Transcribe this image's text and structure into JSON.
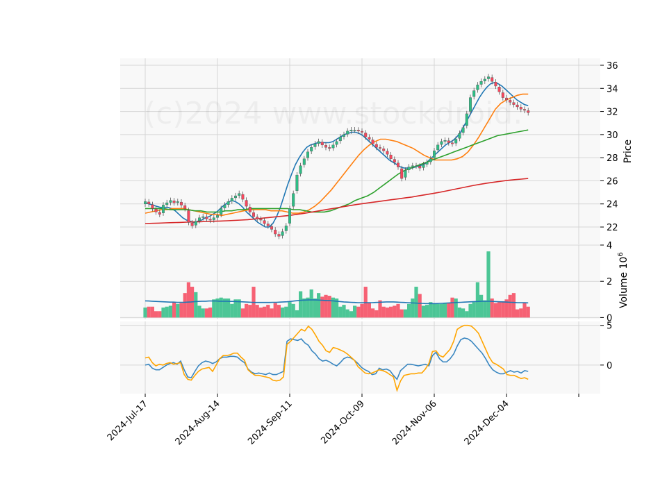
{
  "chart_data": {
    "type": "candlestick",
    "watermark": "(c)2024 www.stockdroid.",
    "colors": {
      "up": "#2ebd85",
      "down": "#f6465d",
      "ma_short": "#1f77b4",
      "ma_mid": "#ff7f0e",
      "ma_long": "#2ca02c",
      "ma_longest": "#d62728",
      "volume_ma": "#1f77b4",
      "osc_fast": "#3a87c1",
      "osc_slow": "#ffa500",
      "panel_bg": "#f8f8f8",
      "grid": "#d6d6d6"
    },
    "x_labels": [
      "2024-Jul-17",
      "2024-Aug-14",
      "2024-Sep-11",
      "2024-Oct-09",
      "2024-Nov-06",
      "2024-Dec-04"
    ],
    "x_label_index": [
      0,
      20,
      40,
      60,
      80,
      100
    ],
    "price_panel": {
      "ylabel": "Price",
      "yticks": [
        22,
        24,
        26,
        28,
        30,
        32,
        34,
        36
      ],
      "ylim": [
        20.5,
        36.6
      ],
      "close": [
        24.2,
        24.0,
        23.6,
        23.3,
        23.1,
        23.9,
        24.1,
        24.3,
        24.1,
        24.2,
        23.9,
        23.6,
        22.4,
        22.1,
        22.5,
        22.8,
        22.9,
        22.7,
        22.6,
        22.8,
        23.0,
        23.6,
        23.9,
        24.2,
        24.5,
        24.7,
        24.9,
        24.4,
        23.8,
        23.3,
        22.9,
        22.7,
        22.6,
        22.3,
        22.1,
        21.8,
        21.4,
        21.2,
        21.6,
        22.1,
        23.6,
        24.9,
        26.5,
        27.3,
        27.9,
        28.5,
        28.9,
        29.2,
        29.4,
        29.1,
        28.9,
        28.8,
        29.1,
        29.4,
        29.8,
        30.0,
        30.3,
        30.4,
        30.4,
        30.3,
        30.2,
        29.8,
        29.6,
        29.2,
        28.9,
        28.8,
        28.6,
        28.3,
        27.9,
        27.6,
        27.2,
        26.2,
        26.9,
        27.2,
        27.3,
        27.3,
        27.1,
        27.4,
        27.6,
        27.9,
        28.6,
        29.1,
        29.4,
        29.5,
        29.3,
        29.2,
        29.6,
        30.1,
        30.6,
        31.8,
        33.2,
        33.8,
        34.3,
        34.6,
        34.8,
        35.0,
        34.6,
        34.2,
        33.7,
        33.2,
        33.0,
        32.8,
        32.6,
        32.4,
        32.2,
        32.1,
        31.9
      ],
      "moving_averages": [
        {
          "period": 5,
          "values": [
            24.1,
            24.0,
            23.9,
            23.8,
            23.7,
            23.7,
            23.7,
            23.6,
            23.4,
            23.1,
            22.8,
            22.6,
            22.5,
            22.4,
            22.5,
            22.6,
            22.8,
            22.9,
            23.1,
            23.3,
            23.6,
            23.9,
            24.1,
            24.3,
            24.2,
            24.0,
            23.7,
            23.3,
            23.0,
            22.7,
            22.4,
            22.2,
            22.0,
            22.0,
            22.3,
            22.9,
            23.7,
            24.7,
            25.7,
            26.6,
            27.4,
            28.0,
            28.5,
            28.9,
            29.1,
            29.2,
            29.3,
            29.3,
            29.3,
            29.3,
            29.4,
            29.6,
            29.8,
            30.0,
            30.1,
            30.2,
            30.2,
            30.1,
            29.9,
            29.6,
            29.3,
            29.0,
            28.7,
            28.4,
            28.1,
            27.8,
            27.6,
            27.4,
            27.2,
            27.1,
            27.1,
            27.1,
            27.2,
            27.3,
            27.4,
            27.6,
            27.9,
            28.2,
            28.5,
            28.8,
            29.1,
            29.3,
            29.5,
            29.8,
            30.2,
            30.8,
            31.4,
            32.0,
            32.6,
            33.2,
            33.7,
            34.1,
            34.4,
            34.5,
            34.4,
            34.2,
            33.9,
            33.6,
            33.3,
            33.0,
            32.8,
            32.6,
            32.5
          ]
        },
        {
          "period": 20,
          "values": [
            23.2,
            23.3,
            23.4,
            23.5,
            23.5,
            23.6,
            23.6,
            23.6,
            23.5,
            23.4,
            23.3,
            23.2,
            23.1,
            23.1,
            23.0,
            23.1,
            23.2,
            23.3,
            23.4,
            23.5,
            23.5,
            23.5,
            23.5,
            23.4,
            23.4,
            23.4,
            23.3,
            23.2,
            23.2,
            23.3,
            23.5,
            23.8,
            24.2,
            24.7,
            25.2,
            25.8,
            26.4,
            27.0,
            27.6,
            28.2,
            28.7,
            29.1,
            29.4,
            29.6,
            29.6,
            29.5,
            29.4,
            29.2,
            29.0,
            28.8,
            28.5,
            28.2,
            28.0,
            27.8,
            27.8,
            27.8,
            27.8,
            27.9,
            28.1,
            28.5,
            29.1,
            29.8,
            30.6,
            31.4,
            32.2,
            32.7,
            33.0,
            33.2,
            33.4,
            33.5,
            33.5
          ]
        },
        {
          "period": 50,
          "values": [
            23.6,
            23.6,
            23.6,
            23.6,
            23.5,
            23.5,
            23.5,
            23.5,
            23.4,
            23.4,
            23.3,
            23.3,
            23.3,
            23.4,
            23.4,
            23.5,
            23.5,
            23.6,
            23.6,
            23.6,
            23.6,
            23.6,
            23.6,
            23.6,
            23.5,
            23.5,
            23.4,
            23.3,
            23.3,
            23.3,
            23.4,
            23.6,
            23.8,
            24.0,
            24.3,
            24.5,
            24.7,
            25.0,
            25.4,
            25.8,
            26.2,
            26.6,
            26.9,
            27.1,
            27.3,
            27.5,
            27.7,
            27.9,
            28.1,
            28.3,
            28.5,
            28.7,
            28.9,
            29.1,
            29.3,
            29.5,
            29.7,
            29.9,
            30.0,
            30.1,
            30.2,
            30.3,
            30.4
          ]
        },
        {
          "period": 200,
          "values": [
            22.3,
            22.32,
            22.34,
            22.36,
            22.38,
            22.4,
            22.42,
            22.44,
            22.46,
            22.48,
            22.5,
            22.52,
            22.54,
            22.57,
            22.6,
            22.64,
            22.7,
            22.76,
            22.82,
            22.88,
            22.94,
            23.0,
            23.08,
            23.16,
            23.26,
            23.36,
            23.46,
            23.56,
            23.66,
            23.76,
            23.86,
            23.96,
            24.04,
            24.12,
            24.2,
            24.28,
            24.36,
            24.44,
            24.52,
            24.6,
            24.7,
            24.8,
            24.9,
            25.0,
            25.12,
            25.24,
            25.36,
            25.48,
            25.6,
            25.7,
            25.8,
            25.88,
            25.96,
            26.04,
            26.1,
            26.15,
            26.2
          ]
        }
      ]
    },
    "volume_panel": {
      "ylabel": "Volume  10^6",
      "yticks": [
        0,
        2,
        4
      ],
      "ylim": [
        -0.1,
        4.0
      ],
      "values": [
        0.55,
        0.6,
        0.6,
        0.35,
        0.35,
        0.55,
        0.6,
        0.65,
        0.85,
        0.75,
        0.8,
        1.35,
        1.95,
        1.7,
        1.4,
        0.65,
        0.5,
        0.5,
        0.55,
        1.0,
        1.05,
        1.1,
        1.05,
        1.05,
        0.75,
        1.0,
        1.0,
        0.5,
        0.75,
        0.7,
        1.7,
        0.7,
        0.55,
        0.6,
        0.7,
        0.5,
        0.8,
        0.7,
        0.55,
        0.6,
        0.85,
        0.75,
        0.4,
        1.45,
        1.05,
        1.1,
        1.55,
        1.05,
        1.35,
        1.15,
        1.25,
        1.2,
        1.1,
        1.05,
        0.6,
        0.7,
        0.45,
        0.35,
        0.65,
        0.6,
        0.75,
        1.7,
        0.8,
        0.5,
        0.4,
        0.95,
        0.6,
        0.55,
        0.6,
        0.65,
        0.75,
        0.45,
        0.45,
        0.75,
        1.05,
        1.7,
        1.3,
        0.65,
        0.7,
        0.85,
        0.8,
        0.75,
        0.75,
        0.8,
        0.8,
        1.1,
        1.05,
        0.55,
        0.5,
        0.35,
        0.75,
        0.85,
        1.95,
        1.25,
        0.95,
        3.65,
        1.05,
        0.8,
        0.85,
        0.9,
        1.0,
        1.25,
        1.35,
        0.45,
        0.5,
        0.8,
        0.6,
        0.7,
        0.8
      ],
      "ma": [
        0.92,
        0.91,
        0.9,
        0.89,
        0.88,
        0.87,
        0.86,
        0.85,
        0.85,
        0.84,
        0.84,
        0.84,
        0.85,
        0.86,
        0.88,
        0.89,
        0.9,
        0.9,
        0.91,
        0.91,
        0.91,
        0.9,
        0.9,
        0.9,
        0.89,
        0.89,
        0.88,
        0.87,
        0.86,
        0.85,
        0.84,
        0.83,
        0.83,
        0.83,
        0.83,
        0.83,
        0.84,
        0.84,
        0.85,
        0.86,
        0.87,
        0.89,
        0.91,
        0.93,
        0.95,
        0.96,
        0.97,
        0.97,
        0.97,
        0.96,
        0.95,
        0.94,
        0.93,
        0.92,
        0.9,
        0.88,
        0.86,
        0.85,
        0.84,
        0.83,
        0.82,
        0.82,
        0.82,
        0.82,
        0.82,
        0.83,
        0.84,
        0.85,
        0.86,
        0.86,
        0.86,
        0.85,
        0.84,
        0.83,
        0.82,
        0.81,
        0.8,
        0.79,
        0.78,
        0.77,
        0.77,
        0.77,
        0.77,
        0.78,
        0.79,
        0.8,
        0.81,
        0.82,
        0.83,
        0.84,
        0.85,
        0.86,
        0.87,
        0.88,
        0.89,
        0.9,
        0.9,
        0.9,
        0.89,
        0.88,
        0.87,
        0.86,
        0.85,
        0.84,
        0.83,
        0.82,
        0.82,
        0.82,
        0.81
      ]
    },
    "oscillator_panel": {
      "yticks": [
        0,
        5
      ],
      "ylim": [
        -3.6,
        5.5
      ],
      "fast": [
        0.0,
        0.1,
        -0.4,
        -0.6,
        -0.6,
        -0.3,
        0.0,
        0.2,
        0.3,
        0.1,
        0.5,
        -0.6,
        -1.5,
        -1.6,
        -0.8,
        -0.1,
        0.3,
        0.5,
        0.4,
        0.2,
        0.4,
        0.8,
        1.0,
        1.0,
        1.1,
        1.1,
        1.0,
        0.6,
        0.3,
        -0.5,
        -0.9,
        -1.1,
        -1.0,
        -1.1,
        -1.2,
        -1.0,
        -1.2,
        -1.2,
        -1.0,
        -0.8,
        3.0,
        3.3,
        3.2,
        3.1,
        3.3,
        2.8,
        2.5,
        1.8,
        1.4,
        0.8,
        0.5,
        0.6,
        0.4,
        0.1,
        -0.1,
        0.3,
        0.8,
        1.0,
        0.9,
        0.6,
        0.2,
        -0.3,
        -0.6,
        -0.8,
        -1.2,
        -1.1,
        -0.4,
        -0.6,
        -0.5,
        -0.7,
        -1.3,
        -1.8,
        -0.7,
        -0.3,
        0.1,
        0.1,
        0.0,
        -0.1,
        0.0,
        0.1,
        -0.1,
        1.2,
        1.6,
        0.8,
        0.4,
        0.4,
        0.8,
        1.4,
        2.4,
        3.2,
        3.4,
        3.3,
        3.0,
        2.5,
        2.0,
        1.5,
        0.8,
        0.0,
        -0.6,
        -0.9,
        -1.1,
        -1.1,
        -0.9,
        -0.7,
        -0.9,
        -0.8,
        -1.0,
        -0.7,
        -0.8
      ],
      "slow": [
        0.9,
        1.0,
        0.3,
        -0.1,
        0.1,
        0.0,
        0.2,
        0.3,
        0.1,
        0.2,
        0.3,
        -1.2,
        -1.8,
        -1.9,
        -1.3,
        -0.8,
        -0.5,
        -0.4,
        -0.3,
        -0.8,
        0.0,
        0.8,
        1.2,
        1.2,
        1.3,
        1.5,
        1.5,
        1.0,
        0.6,
        -0.6,
        -1.0,
        -1.3,
        -1.3,
        -1.4,
        -1.5,
        -1.6,
        -1.9,
        -2.0,
        -1.9,
        -1.5,
        2.6,
        3.0,
        3.5,
        4.0,
        4.5,
        4.3,
        4.9,
        4.5,
        3.8,
        3.0,
        2.5,
        1.8,
        1.6,
        2.2,
        2.1,
        1.9,
        1.7,
        1.4,
        1.0,
        0.6,
        -0.2,
        -0.6,
        -1.0,
        -1.1,
        -1.0,
        -0.8,
        -0.6,
        -0.7,
        -0.9,
        -1.2,
        -1.5,
        -3.2,
        -2.0,
        -1.3,
        -1.2,
        -1.1,
        -1.1,
        -1.0,
        -1.0,
        -0.5,
        0.2,
        1.7,
        1.8,
        1.2,
        1.0,
        1.5,
        2.0,
        3.0,
        4.5,
        4.8,
        5.0,
        5.0,
        4.9,
        4.5,
        4.0,
        3.0,
        2.0,
        1.0,
        0.3,
        0.1,
        -0.2,
        -0.5,
        -1.2,
        -1.3,
        -1.3,
        -1.5,
        -1.7,
        -1.6,
        -1.8
      ]
    }
  }
}
